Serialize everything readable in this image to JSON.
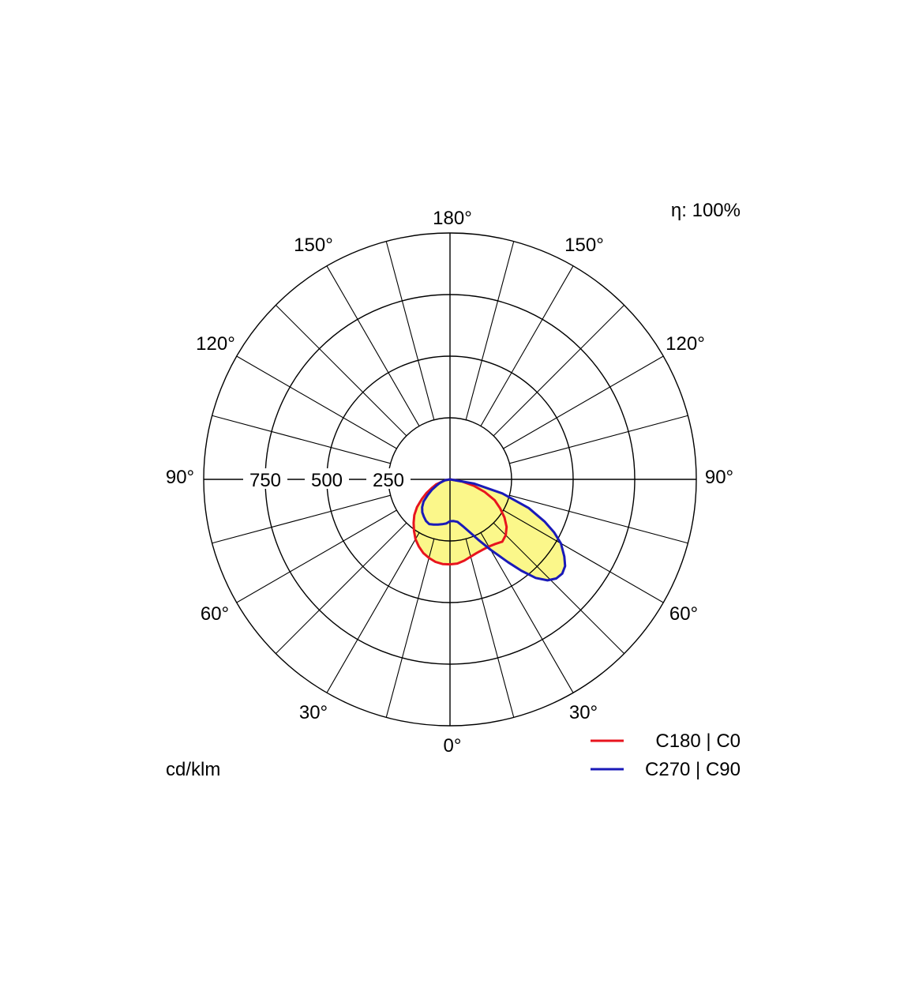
{
  "chart_data": {
    "type": "polar",
    "title": "",
    "efficiency_label": "η: 100%",
    "unit_label": "cd/klm",
    "radial_ticks": [
      "250",
      "500",
      "750"
    ],
    "radial_tick_values": [
      250,
      500,
      750
    ],
    "radial_max": 1000,
    "angle_labels": {
      "top": "180°",
      "bottom": "0°",
      "left_90": "90°",
      "right_90": "90°",
      "left_150": "150°",
      "right_150": "150°",
      "left_120": "120°",
      "right_120": "120°",
      "left_60": "60°",
      "right_60": "60°",
      "left_30": "30°",
      "right_30": "30°"
    },
    "grid": true,
    "legend_position": "bottom-right",
    "series": [
      {
        "name": "C180 | C0",
        "color": "#e8141e",
        "angles_deg": [
          -90,
          -80,
          -70,
          -65,
          -60,
          -55,
          -50,
          -45,
          -40,
          -35,
          -30,
          -25,
          -20,
          -15,
          -10,
          -5,
          0,
          5,
          10,
          15,
          20,
          25,
          30,
          35,
          40,
          45,
          50,
          55,
          60,
          65,
          70,
          75,
          80,
          90
        ],
        "values": [
          0,
          20,
          60,
          80,
          110,
          140,
          175,
          205,
          230,
          255,
          280,
          300,
          318,
          330,
          340,
          345,
          345,
          343,
          335,
          325,
          318,
          315,
          315,
          320,
          330,
          320,
          300,
          270,
          235,
          200,
          150,
          100,
          50,
          0
        ]
      },
      {
        "name": "C270 | C90",
        "color": "#1a1ab8",
        "angles_deg": [
          -90,
          -80,
          -75,
          -70,
          -65,
          -60,
          -55,
          -50,
          -45,
          -40,
          -35,
          -30,
          -25,
          -20,
          -15,
          -10,
          -5,
          0,
          5,
          10,
          15,
          20,
          25,
          30,
          35,
          38,
          41,
          44,
          47,
          50,
          53,
          56,
          60,
          63,
          66,
          70,
          75,
          80,
          90
        ],
        "values": [
          0,
          20,
          30,
          45,
          60,
          85,
          110,
          140,
          160,
          175,
          185,
          195,
          200,
          195,
          190,
          185,
          180,
          170,
          170,
          175,
          195,
          225,
          270,
          330,
          410,
          470,
          530,
          570,
          590,
          595,
          585,
          560,
          520,
          475,
          420,
          340,
          220,
          100,
          0
        ]
      }
    ]
  }
}
